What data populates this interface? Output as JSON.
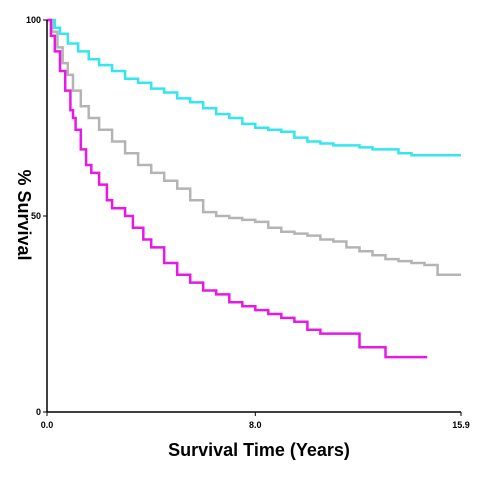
{
  "chart_data": {
    "type": "line",
    "title": "",
    "xlabel": "Survival Time (Years)",
    "ylabel": "% Survival",
    "xlim": [
      0,
      15.9
    ],
    "ylim": [
      0,
      100
    ],
    "x_tick_labels": [
      "0.0",
      "8.0",
      "15.9"
    ],
    "y_tick_labels": [
      "0",
      "50",
      "100"
    ],
    "x_tick_values": [
      0,
      8,
      15.9
    ],
    "y_tick_values": [
      0,
      50,
      100
    ],
    "grid": false,
    "legend": "none",
    "series": [
      {
        "color": "#33e6f0",
        "points": [
          [
            0,
            100
          ],
          [
            0.3,
            98
          ],
          [
            0.5,
            96.5
          ],
          [
            0.8,
            94
          ],
          [
            1.2,
            92
          ],
          [
            1.6,
            90
          ],
          [
            2,
            88.5
          ],
          [
            2.5,
            87
          ],
          [
            3,
            85
          ],
          [
            3.5,
            84
          ],
          [
            4,
            82.5
          ],
          [
            4.5,
            81.5
          ],
          [
            5,
            80
          ],
          [
            5.5,
            79
          ],
          [
            6,
            77.5
          ],
          [
            6.5,
            76
          ],
          [
            7,
            75
          ],
          [
            7.5,
            73.5
          ],
          [
            8,
            72.5
          ],
          [
            8.5,
            72
          ],
          [
            9,
            71.5
          ],
          [
            9.5,
            70
          ],
          [
            10,
            69
          ],
          [
            10.5,
            68.5
          ],
          [
            11,
            68
          ],
          [
            11.5,
            68
          ],
          [
            12,
            67.5
          ],
          [
            12.5,
            67
          ],
          [
            13,
            67
          ],
          [
            13.5,
            66
          ],
          [
            14,
            65.5
          ],
          [
            14.5,
            65.5
          ],
          [
            15.9,
            65.5
          ]
        ]
      },
      {
        "color": "#b4b4b4",
        "points": [
          [
            0,
            100
          ],
          [
            0.2,
            97
          ],
          [
            0.4,
            93
          ],
          [
            0.6,
            89
          ],
          [
            0.8,
            86
          ],
          [
            1,
            82
          ],
          [
            1.3,
            78
          ],
          [
            1.6,
            75
          ],
          [
            2,
            72
          ],
          [
            2.5,
            69
          ],
          [
            3,
            66
          ],
          [
            3.5,
            63
          ],
          [
            4,
            61
          ],
          [
            4.5,
            59
          ],
          [
            5,
            57
          ],
          [
            5.5,
            54
          ],
          [
            6,
            51
          ],
          [
            6.5,
            50
          ],
          [
            7,
            49.5
          ],
          [
            7.5,
            49
          ],
          [
            8,
            48.5
          ],
          [
            8.5,
            47
          ],
          [
            9,
            46
          ],
          [
            9.5,
            45.5
          ],
          [
            10,
            45
          ],
          [
            10.5,
            44
          ],
          [
            11,
            43.5
          ],
          [
            11.5,
            42
          ],
          [
            12,
            41
          ],
          [
            12.5,
            40
          ],
          [
            13,
            39
          ],
          [
            13.5,
            38.5
          ],
          [
            14,
            38
          ],
          [
            14.5,
            37.5
          ],
          [
            15,
            35
          ],
          [
            15.9,
            35
          ]
        ]
      },
      {
        "color": "#e619e6",
        "points": [
          [
            0,
            100
          ],
          [
            0.15,
            96
          ],
          [
            0.3,
            92
          ],
          [
            0.5,
            87
          ],
          [
            0.7,
            82
          ],
          [
            0.9,
            77
          ],
          [
            1,
            75
          ],
          [
            1.1,
            72
          ],
          [
            1.3,
            67
          ],
          [
            1.5,
            63
          ],
          [
            1.7,
            61
          ],
          [
            2,
            58
          ],
          [
            2.3,
            54
          ],
          [
            2.5,
            52
          ],
          [
            3,
            50
          ],
          [
            3.3,
            47
          ],
          [
            3.7,
            44
          ],
          [
            4,
            42
          ],
          [
            4.5,
            38
          ],
          [
            5,
            35
          ],
          [
            5.5,
            33
          ],
          [
            6,
            31
          ],
          [
            6.5,
            30
          ],
          [
            7,
            28
          ],
          [
            7.5,
            27
          ],
          [
            8,
            26
          ],
          [
            8.5,
            25
          ],
          [
            9,
            24
          ],
          [
            9.5,
            23
          ],
          [
            10,
            21
          ],
          [
            10.5,
            20
          ],
          [
            11,
            20
          ],
          [
            11.5,
            20
          ],
          [
            12,
            16.5
          ],
          [
            12.5,
            16.5
          ],
          [
            13,
            14
          ],
          [
            13.5,
            14
          ],
          [
            14,
            14
          ],
          [
            14.6,
            14
          ]
        ]
      }
    ]
  }
}
